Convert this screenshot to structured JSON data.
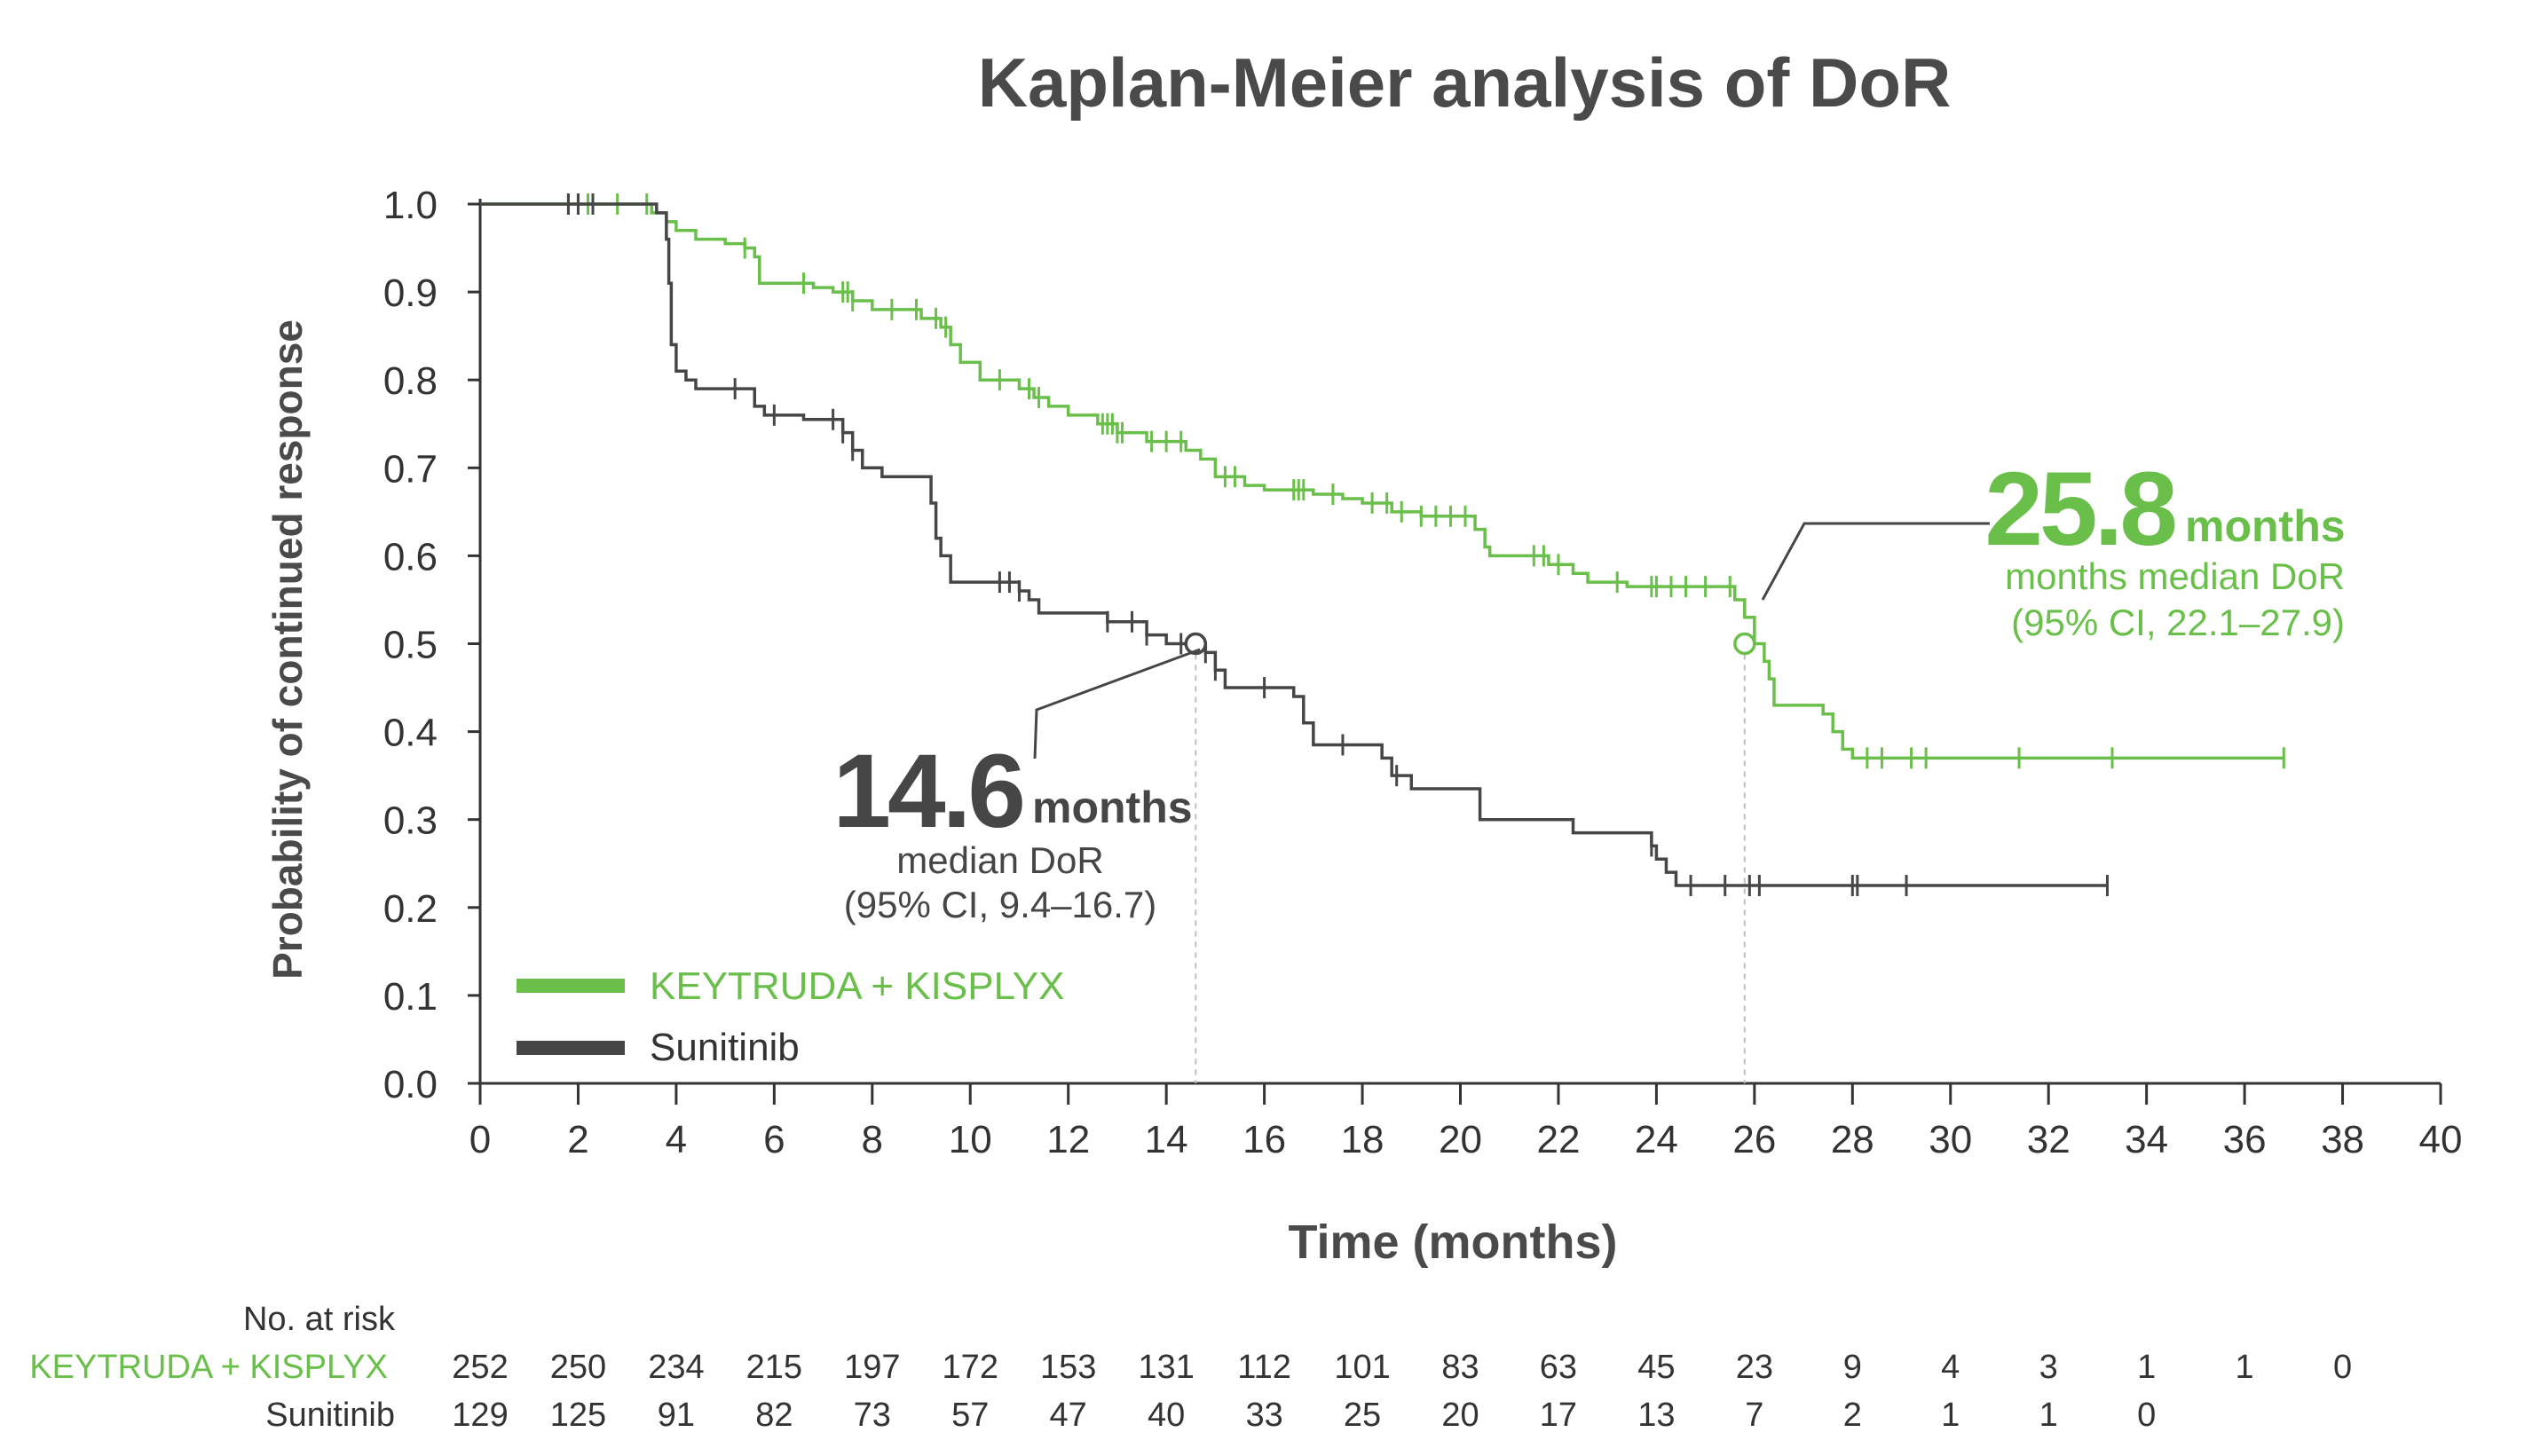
{
  "chart_data": {
    "type": "line",
    "title": "Kaplan-Meier analysis of DoR",
    "xlabel": "Time (months)",
    "ylabel": "Probability of continued response",
    "xlim": [
      0,
      40
    ],
    "ylim": [
      0,
      1.0
    ],
    "x_ticks": [
      "0",
      "2",
      "4",
      "6",
      "8",
      "10",
      "12",
      "14",
      "16",
      "18",
      "20",
      "22",
      "24",
      "26",
      "28",
      "30",
      "32",
      "34",
      "36",
      "38",
      "40"
    ],
    "y_ticks": [
      "0.0",
      "0.1",
      "0.2",
      "0.3",
      "0.4",
      "0.5",
      "0.6",
      "0.7",
      "0.8",
      "0.9",
      "1.0"
    ],
    "legend_position": "bottom-left",
    "series": [
      {
        "name": "KEYTRUDA + KISPLYX",
        "color": "#6abf4b",
        "steps": [
          [
            0,
            1.0
          ],
          [
            3.5,
            0.99
          ],
          [
            3.8,
            0.98
          ],
          [
            4.0,
            0.97
          ],
          [
            4.4,
            0.96
          ],
          [
            5.0,
            0.955
          ],
          [
            5.4,
            0.95
          ],
          [
            5.6,
            0.94
          ],
          [
            5.7,
            0.91
          ],
          [
            6.8,
            0.905
          ],
          [
            7.2,
            0.9
          ],
          [
            7.6,
            0.89
          ],
          [
            8.0,
            0.88
          ],
          [
            9.0,
            0.87
          ],
          [
            9.4,
            0.86
          ],
          [
            9.6,
            0.84
          ],
          [
            9.8,
            0.82
          ],
          [
            10.2,
            0.8
          ],
          [
            11.0,
            0.79
          ],
          [
            11.3,
            0.78
          ],
          [
            11.6,
            0.77
          ],
          [
            12.0,
            0.76
          ],
          [
            12.6,
            0.75
          ],
          [
            13.0,
            0.74
          ],
          [
            13.6,
            0.73
          ],
          [
            14.4,
            0.72
          ],
          [
            14.7,
            0.71
          ],
          [
            15.0,
            0.69
          ],
          [
            15.6,
            0.68
          ],
          [
            16.0,
            0.675
          ],
          [
            17.0,
            0.67
          ],
          [
            17.6,
            0.665
          ],
          [
            18.0,
            0.66
          ],
          [
            18.6,
            0.65
          ],
          [
            19.2,
            0.645
          ],
          [
            20.3,
            0.63
          ],
          [
            20.5,
            0.61
          ],
          [
            20.6,
            0.6
          ],
          [
            21.8,
            0.59
          ],
          [
            22.3,
            0.58
          ],
          [
            22.6,
            0.57
          ],
          [
            23.4,
            0.565
          ],
          [
            25.6,
            0.55
          ],
          [
            25.8,
            0.53
          ],
          [
            26.0,
            0.5
          ],
          [
            26.2,
            0.48
          ],
          [
            26.3,
            0.46
          ],
          [
            26.4,
            0.43
          ],
          [
            27.4,
            0.42
          ],
          [
            27.6,
            0.4
          ],
          [
            27.8,
            0.38
          ],
          [
            28.0,
            0.37
          ],
          [
            36.8,
            0.37
          ]
        ],
        "censor_x": [
          1.8,
          2.0,
          2.2,
          2.8,
          3.4,
          5.4,
          6.6,
          7.4,
          7.5,
          7.6,
          8.4,
          8.9,
          9.3,
          9.5,
          10.6,
          11.2,
          11.4,
          12.7,
          12.8,
          12.9,
          13.0,
          13.1,
          13.7,
          14.0,
          14.3,
          15.2,
          15.4,
          16.6,
          16.7,
          16.8,
          17.4,
          18.2,
          18.5,
          18.8,
          19.2,
          19.5,
          19.8,
          20.1,
          21.5,
          21.7,
          22.0,
          23.2,
          23.9,
          24.0,
          24.3,
          24.6,
          25.0,
          25.5,
          28.3,
          28.6,
          29.2,
          29.5,
          31.4,
          33.3,
          36.8
        ],
        "median": 25.8,
        "median_value": "25.8",
        "median_unit": "months",
        "median_line1": "months median DoR",
        "median_line2": "(95% CI, 22.1–27.9)"
      },
      {
        "name": "Sunitinib",
        "color": "#464646",
        "steps": [
          [
            0,
            1.0
          ],
          [
            3.6,
            0.99
          ],
          [
            3.8,
            0.96
          ],
          [
            3.85,
            0.91
          ],
          [
            3.9,
            0.84
          ],
          [
            4.0,
            0.81
          ],
          [
            4.2,
            0.8
          ],
          [
            4.4,
            0.79
          ],
          [
            5.6,
            0.77
          ],
          [
            5.8,
            0.76
          ],
          [
            6.6,
            0.755
          ],
          [
            7.4,
            0.74
          ],
          [
            7.6,
            0.72
          ],
          [
            7.8,
            0.7
          ],
          [
            8.2,
            0.69
          ],
          [
            9.2,
            0.66
          ],
          [
            9.3,
            0.62
          ],
          [
            9.4,
            0.6
          ],
          [
            9.6,
            0.57
          ],
          [
            11.0,
            0.56
          ],
          [
            11.2,
            0.55
          ],
          [
            11.4,
            0.535
          ],
          [
            12.8,
            0.525
          ],
          [
            13.6,
            0.51
          ],
          [
            14.0,
            0.5
          ],
          [
            14.8,
            0.49
          ],
          [
            15.0,
            0.47
          ],
          [
            15.2,
            0.45
          ],
          [
            16.6,
            0.44
          ],
          [
            16.8,
            0.41
          ],
          [
            17.0,
            0.385
          ],
          [
            18.4,
            0.37
          ],
          [
            18.6,
            0.35
          ],
          [
            19.0,
            0.335
          ],
          [
            20.4,
            0.3
          ],
          [
            22.3,
            0.285
          ],
          [
            23.9,
            0.27
          ],
          [
            24.0,
            0.255
          ],
          [
            24.2,
            0.24
          ],
          [
            24.4,
            0.225
          ],
          [
            33.2,
            0.225
          ]
        ],
        "censor_x": [
          1.8,
          2.0,
          2.3,
          5.2,
          6.0,
          7.2,
          7.4,
          7.6,
          10.6,
          10.8,
          11.0,
          12.8,
          13.3,
          13.6,
          14.3,
          14.8,
          15.0,
          16.0,
          17.6,
          18.7,
          23.9,
          24.7,
          25.4,
          25.9,
          26.1,
          28.0,
          28.1,
          29.1,
          33.2
        ],
        "median": 14.6,
        "median_value": "14.6",
        "median_unit": "months",
        "median_line1": "median DoR",
        "median_line2": "(95% CI, 9.4–16.7)"
      }
    ],
    "risk_table": {
      "header": "No. at risk",
      "rows": [
        {
          "label": "KEYTRUDA + KISPLYX",
          "color": "#6abf4b",
          "values": [
            "252",
            "250",
            "234",
            "215",
            "197",
            "172",
            "153",
            "131",
            "112",
            "101",
            "83",
            "63",
            "45",
            "23",
            "9",
            "4",
            "3",
            "1",
            "1",
            "0"
          ]
        },
        {
          "label": "Sunitinib",
          "color": "#464646",
          "values": [
            "129",
            "125",
            "91",
            "82",
            "73",
            "57",
            "47",
            "40",
            "33",
            "25",
            "20",
            "17",
            "13",
            "7",
            "2",
            "1",
            "1",
            "0"
          ]
        }
      ]
    }
  }
}
